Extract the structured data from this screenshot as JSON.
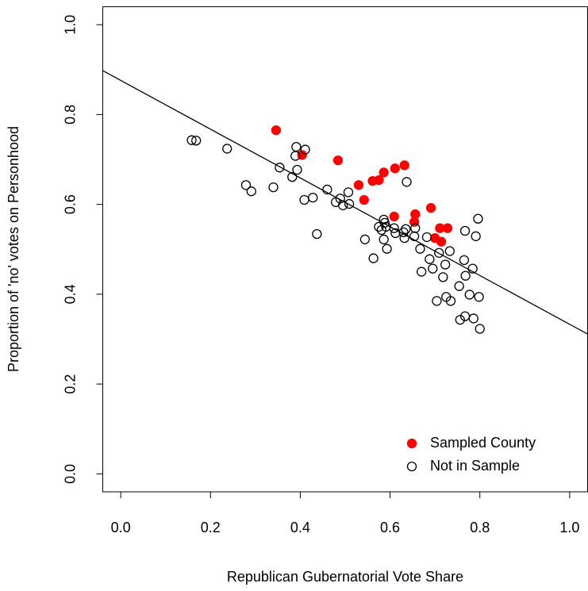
{
  "chart_data": {
    "type": "scatter",
    "x_label": "Republican Gubernatorial Vote Share",
    "y_label": "Proportion of 'no' votes on Personhood",
    "xlim": [
      -0.04,
      1.04
    ],
    "ylim": [
      -0.04,
      1.04
    ],
    "xticks": [
      {
        "value": 0,
        "label": "0.0"
      },
      0.2,
      0.4,
      0.6,
      0.8,
      {
        "value": 1,
        "label": "1.0"
      }
    ],
    "yticks": [
      {
        "value": 0,
        "label": "0.0"
      },
      0.2,
      0.4,
      0.6,
      0.8,
      {
        "value": 1,
        "label": "1.0"
      }
    ],
    "legend": "bottom-right",
    "fit_line": {
      "intercept": 0.876,
      "slope": -0.543,
      "color": "#000000"
    },
    "series": [
      {
        "name": "Sampled County",
        "color": "#ff0000",
        "filled": true,
        "x": [
          0.346,
          0.404,
          0.484,
          0.53,
          0.542,
          0.561,
          0.575,
          0.586,
          0.611,
          0.632,
          0.609,
          0.656,
          0.654,
          0.691,
          0.7,
          0.711,
          0.714,
          0.728
        ],
        "values": [
          0.765,
          0.71,
          0.698,
          0.643,
          0.61,
          0.652,
          0.654,
          0.671,
          0.68,
          0.687,
          0.573,
          0.578,
          0.561,
          0.592,
          0.525,
          0.547,
          0.517,
          0.547
        ]
      },
      {
        "name": "Not in Sample",
        "color": "#000000",
        "filled": false,
        "x": [
          0.158,
          0.168,
          0.237,
          0.279,
          0.291,
          0.34,
          0.354,
          0.382,
          0.389,
          0.391,
          0.393,
          0.411,
          0.409,
          0.428,
          0.437,
          0.46,
          0.479,
          0.489,
          0.495,
          0.507,
          0.509,
          0.544,
          0.563,
          0.575,
          0.581,
          0.586,
          0.588,
          0.591,
          0.586,
          0.593,
          0.609,
          0.612,
          0.63,
          0.632,
          0.635,
          0.637,
          0.654,
          0.656,
          0.667,
          0.67,
          0.682,
          0.688,
          0.695,
          0.704,
          0.709,
          0.718,
          0.723,
          0.725,
          0.733,
          0.735,
          0.754,
          0.756,
          0.765,
          0.767,
          0.768,
          0.767,
          0.777,
          0.784,
          0.786,
          0.791,
          0.796,
          0.798,
          0.8
        ],
        "values": [
          0.743,
          0.742,
          0.724,
          0.643,
          0.629,
          0.638,
          0.682,
          0.661,
          0.708,
          0.728,
          0.677,
          0.722,
          0.61,
          0.615,
          0.534,
          0.633,
          0.605,
          0.613,
          0.598,
          0.627,
          0.601,
          0.522,
          0.48,
          0.55,
          0.543,
          0.566,
          0.559,
          0.55,
          0.522,
          0.501,
          0.547,
          0.536,
          0.538,
          0.525,
          0.545,
          0.65,
          0.529,
          0.547,
          0.501,
          0.45,
          0.527,
          0.478,
          0.457,
          0.385,
          0.492,
          0.438,
          0.466,
          0.394,
          0.496,
          0.385,
          0.418,
          0.343,
          0.476,
          0.541,
          0.441,
          0.351,
          0.399,
          0.457,
          0.346,
          0.529,
          0.568,
          0.394,
          0.323
        ]
      }
    ]
  }
}
